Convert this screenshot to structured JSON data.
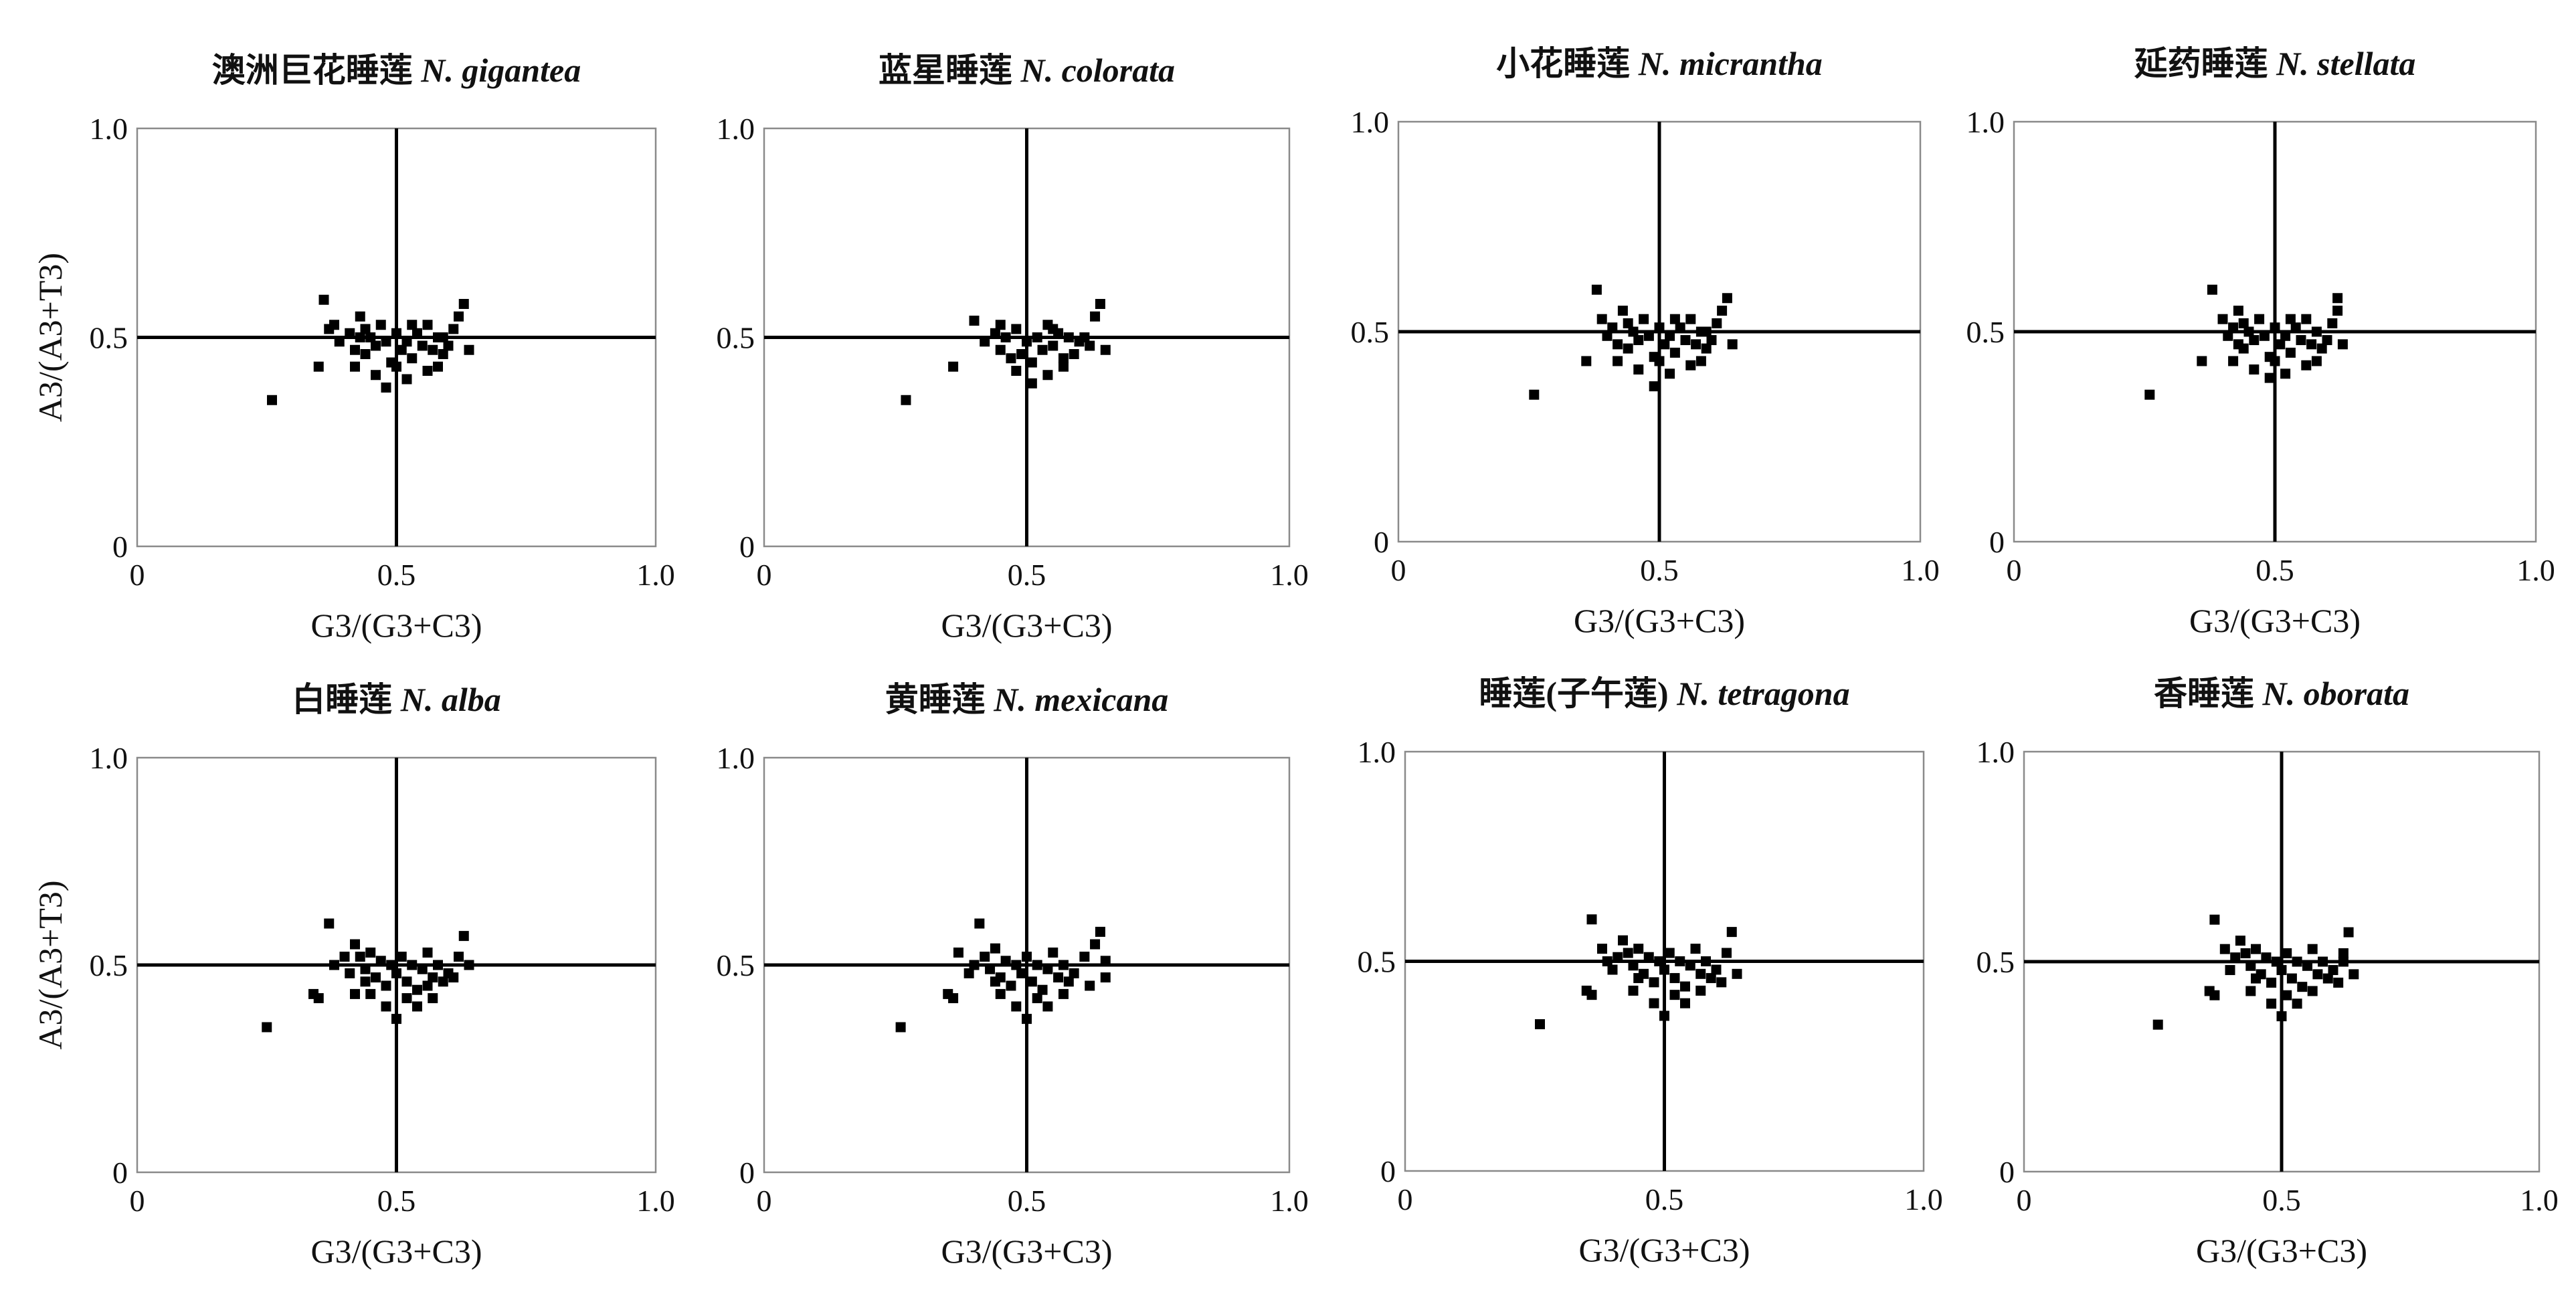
{
  "colors": {
    "background": "#ffffff",
    "frame": "#8a8a8a",
    "points": "#000000",
    "reference_lines": "#000000"
  },
  "chart_data": [
    {
      "type": "scatter",
      "title_cn": "澳洲巨花睡莲",
      "title_latin": "N. gigantea",
      "xlabel": "G3/(G3+C3)",
      "ylabel": "A3/(A3+T3)",
      "xlim": [
        0,
        1.0
      ],
      "ylim": [
        0,
        1.0
      ],
      "x_ticks": [
        "0",
        "0.5",
        "1.0"
      ],
      "y_ticks": [
        "0",
        "0.5",
        "1.0"
      ],
      "reference_lines": {
        "x": 0.5,
        "y": 0.5
      },
      "grid": false,
      "points": [
        [
          0.26,
          0.35
        ],
        [
          0.36,
          0.59
        ],
        [
          0.35,
          0.43
        ],
        [
          0.38,
          0.53
        ],
        [
          0.39,
          0.49
        ],
        [
          0.41,
          0.51
        ],
        [
          0.42,
          0.47
        ],
        [
          0.43,
          0.55
        ],
        [
          0.44,
          0.52
        ],
        [
          0.45,
          0.5
        ],
        [
          0.46,
          0.48
        ],
        [
          0.47,
          0.53
        ],
        [
          0.48,
          0.49
        ],
        [
          0.49,
          0.44
        ],
        [
          0.5,
          0.51
        ],
        [
          0.51,
          0.47
        ],
        [
          0.52,
          0.49
        ],
        [
          0.53,
          0.45
        ],
        [
          0.54,
          0.51
        ],
        [
          0.55,
          0.48
        ],
        [
          0.56,
          0.53
        ],
        [
          0.57,
          0.47
        ],
        [
          0.58,
          0.5
        ],
        [
          0.59,
          0.46
        ],
        [
          0.6,
          0.48
        ],
        [
          0.61,
          0.52
        ],
        [
          0.62,
          0.55
        ],
        [
          0.63,
          0.58
        ],
        [
          0.64,
          0.47
        ],
        [
          0.42,
          0.43
        ],
        [
          0.46,
          0.41
        ],
        [
          0.48,
          0.38
        ],
        [
          0.5,
          0.43
        ],
        [
          0.52,
          0.4
        ],
        [
          0.56,
          0.42
        ],
        [
          0.58,
          0.43
        ],
        [
          0.44,
          0.46
        ],
        [
          0.53,
          0.53
        ],
        [
          0.59,
          0.5
        ],
        [
          0.37,
          0.52
        ],
        [
          0.43,
          0.5
        ]
      ]
    },
    {
      "type": "scatter",
      "title_cn": "蓝星睡莲",
      "title_latin": "N. colorata",
      "xlabel": "G3/(G3+C3)",
      "ylabel": "",
      "xlim": [
        0,
        1.0
      ],
      "ylim": [
        0,
        1.0
      ],
      "x_ticks": [
        "0",
        "0.5",
        "1.0"
      ],
      "y_ticks": [
        "0",
        "0.5",
        "1.0"
      ],
      "reference_lines": {
        "x": 0.5,
        "y": 0.5
      },
      "grid": false,
      "points": [
        [
          0.27,
          0.35
        ],
        [
          0.36,
          0.43
        ],
        [
          0.4,
          0.54
        ],
        [
          0.42,
          0.49
        ],
        [
          0.44,
          0.51
        ],
        [
          0.45,
          0.47
        ],
        [
          0.46,
          0.5
        ],
        [
          0.48,
          0.52
        ],
        [
          0.49,
          0.46
        ],
        [
          0.5,
          0.49
        ],
        [
          0.51,
          0.44
        ],
        [
          0.52,
          0.5
        ],
        [
          0.53,
          0.47
        ],
        [
          0.54,
          0.53
        ],
        [
          0.55,
          0.48
        ],
        [
          0.56,
          0.51
        ],
        [
          0.57,
          0.45
        ],
        [
          0.58,
          0.5
        ],
        [
          0.59,
          0.46
        ],
        [
          0.6,
          0.49
        ],
        [
          0.62,
          0.48
        ],
        [
          0.63,
          0.55
        ],
        [
          0.64,
          0.58
        ],
        [
          0.65,
          0.47
        ],
        [
          0.48,
          0.42
        ],
        [
          0.51,
          0.39
        ],
        [
          0.54,
          0.41
        ],
        [
          0.57,
          0.43
        ],
        [
          0.47,
          0.45
        ],
        [
          0.55,
          0.52
        ],
        [
          0.61,
          0.5
        ],
        [
          0.45,
          0.53
        ]
      ]
    },
    {
      "type": "scatter",
      "title_cn": "小花睡莲",
      "title_latin": "N. micrantha",
      "xlabel": "G3/(G3+C3)",
      "ylabel": "",
      "xlim": [
        0,
        1.0
      ],
      "ylim": [
        0,
        1.0
      ],
      "x_ticks": [
        "0",
        "0.5",
        "1.0"
      ],
      "y_ticks": [
        "0",
        "0.5",
        "1.0"
      ],
      "reference_lines": {
        "x": 0.5,
        "y": 0.5
      },
      "grid": false,
      "points": [
        [
          0.26,
          0.35
        ],
        [
          0.38,
          0.6
        ],
        [
          0.36,
          0.43
        ],
        [
          0.39,
          0.53
        ],
        [
          0.4,
          0.49
        ],
        [
          0.41,
          0.51
        ],
        [
          0.42,
          0.47
        ],
        [
          0.43,
          0.55
        ],
        [
          0.44,
          0.52
        ],
        [
          0.45,
          0.5
        ],
        [
          0.46,
          0.48
        ],
        [
          0.47,
          0.53
        ],
        [
          0.48,
          0.49
        ],
        [
          0.49,
          0.44
        ],
        [
          0.5,
          0.51
        ],
        [
          0.51,
          0.47
        ],
        [
          0.52,
          0.49
        ],
        [
          0.53,
          0.45
        ],
        [
          0.54,
          0.51
        ],
        [
          0.55,
          0.48
        ],
        [
          0.56,
          0.53
        ],
        [
          0.57,
          0.47
        ],
        [
          0.58,
          0.5
        ],
        [
          0.59,
          0.46
        ],
        [
          0.6,
          0.48
        ],
        [
          0.61,
          0.52
        ],
        [
          0.62,
          0.55
        ],
        [
          0.63,
          0.58
        ],
        [
          0.64,
          0.47
        ],
        [
          0.42,
          0.43
        ],
        [
          0.46,
          0.41
        ],
        [
          0.49,
          0.37
        ],
        [
          0.5,
          0.43
        ],
        [
          0.52,
          0.4
        ],
        [
          0.56,
          0.42
        ],
        [
          0.58,
          0.43
        ],
        [
          0.44,
          0.46
        ],
        [
          0.53,
          0.53
        ],
        [
          0.59,
          0.5
        ]
      ]
    },
    {
      "type": "scatter",
      "title_cn": "延药睡莲",
      "title_latin": "N. stellata",
      "xlabel": "G3/(G3+C3)",
      "ylabel": "",
      "xlim": [
        0,
        1.0
      ],
      "ylim": [
        0,
        1.0
      ],
      "x_ticks": [
        "0",
        "0.5",
        "1.0"
      ],
      "y_ticks": [
        "0",
        "0.5",
        "1.0"
      ],
      "reference_lines": {
        "x": 0.5,
        "y": 0.5
      },
      "grid": false,
      "points": [
        [
          0.26,
          0.35
        ],
        [
          0.38,
          0.6
        ],
        [
          0.36,
          0.43
        ],
        [
          0.4,
          0.53
        ],
        [
          0.41,
          0.49
        ],
        [
          0.42,
          0.51
        ],
        [
          0.43,
          0.47
        ],
        [
          0.43,
          0.55
        ],
        [
          0.44,
          0.52
        ],
        [
          0.45,
          0.5
        ],
        [
          0.46,
          0.48
        ],
        [
          0.47,
          0.53
        ],
        [
          0.48,
          0.49
        ],
        [
          0.49,
          0.44
        ],
        [
          0.5,
          0.51
        ],
        [
          0.51,
          0.47
        ],
        [
          0.52,
          0.49
        ],
        [
          0.53,
          0.45
        ],
        [
          0.54,
          0.51
        ],
        [
          0.55,
          0.48
        ],
        [
          0.56,
          0.53
        ],
        [
          0.57,
          0.47
        ],
        [
          0.58,
          0.5
        ],
        [
          0.59,
          0.46
        ],
        [
          0.6,
          0.48
        ],
        [
          0.61,
          0.52
        ],
        [
          0.62,
          0.55
        ],
        [
          0.62,
          0.58
        ],
        [
          0.63,
          0.47
        ],
        [
          0.42,
          0.43
        ],
        [
          0.46,
          0.41
        ],
        [
          0.49,
          0.39
        ],
        [
          0.5,
          0.43
        ],
        [
          0.52,
          0.4
        ],
        [
          0.56,
          0.42
        ],
        [
          0.58,
          0.43
        ],
        [
          0.44,
          0.46
        ],
        [
          0.53,
          0.53
        ]
      ]
    },
    {
      "type": "scatter",
      "title_cn": "白睡莲",
      "title_latin": "N. alba",
      "xlabel": "G3/(G3+C3)",
      "ylabel": "A3/(A3+T3)",
      "xlim": [
        0,
        1.0
      ],
      "ylim": [
        0,
        1.0
      ],
      "x_ticks": [
        "0",
        "0.5",
        "1.0"
      ],
      "y_ticks": [
        "0",
        "0.5",
        "1.0"
      ],
      "reference_lines": {
        "x": 0.5,
        "y": 0.5
      },
      "grid": false,
      "points": [
        [
          0.25,
          0.35
        ],
        [
          0.34,
          0.43
        ],
        [
          0.35,
          0.42
        ],
        [
          0.37,
          0.6
        ],
        [
          0.38,
          0.5
        ],
        [
          0.4,
          0.52
        ],
        [
          0.41,
          0.48
        ],
        [
          0.42,
          0.55
        ],
        [
          0.43,
          0.52
        ],
        [
          0.44,
          0.49
        ],
        [
          0.45,
          0.53
        ],
        [
          0.46,
          0.47
        ],
        [
          0.47,
          0.51
        ],
        [
          0.48,
          0.45
        ],
        [
          0.49,
          0.5
        ],
        [
          0.5,
          0.48
        ],
        [
          0.51,
          0.52
        ],
        [
          0.52,
          0.46
        ],
        [
          0.53,
          0.5
        ],
        [
          0.54,
          0.44
        ],
        [
          0.55,
          0.49
        ],
        [
          0.56,
          0.53
        ],
        [
          0.57,
          0.47
        ],
        [
          0.58,
          0.5
        ],
        [
          0.59,
          0.46
        ],
        [
          0.6,
          0.48
        ],
        [
          0.62,
          0.52
        ],
        [
          0.63,
          0.57
        ],
        [
          0.64,
          0.5
        ],
        [
          0.42,
          0.43
        ],
        [
          0.45,
          0.43
        ],
        [
          0.48,
          0.4
        ],
        [
          0.5,
          0.37
        ],
        [
          0.52,
          0.42
        ],
        [
          0.54,
          0.4
        ],
        [
          0.57,
          0.42
        ],
        [
          0.61,
          0.47
        ],
        [
          0.44,
          0.46
        ],
        [
          0.56,
          0.45
        ]
      ]
    },
    {
      "type": "scatter",
      "title_cn": "黄睡莲",
      "title_latin": "N. mexicana",
      "xlabel": "G3/(G3+C3)",
      "ylabel": "",
      "xlim": [
        0,
        1.0
      ],
      "ylim": [
        0,
        1.0
      ],
      "x_ticks": [
        "0",
        "0.5",
        "1.0"
      ],
      "y_ticks": [
        "0",
        "0.5",
        "1.0"
      ],
      "reference_lines": {
        "x": 0.5,
        "y": 0.5
      },
      "grid": false,
      "points": [
        [
          0.26,
          0.35
        ],
        [
          0.35,
          0.43
        ],
        [
          0.36,
          0.42
        ],
        [
          0.37,
          0.53
        ],
        [
          0.39,
          0.48
        ],
        [
          0.4,
          0.5
        ],
        [
          0.41,
          0.6
        ],
        [
          0.42,
          0.52
        ],
        [
          0.43,
          0.49
        ],
        [
          0.44,
          0.54
        ],
        [
          0.45,
          0.47
        ],
        [
          0.46,
          0.51
        ],
        [
          0.47,
          0.45
        ],
        [
          0.48,
          0.5
        ],
        [
          0.49,
          0.48
        ],
        [
          0.5,
          0.52
        ],
        [
          0.51,
          0.46
        ],
        [
          0.52,
          0.5
        ],
        [
          0.53,
          0.44
        ],
        [
          0.54,
          0.49
        ],
        [
          0.55,
          0.53
        ],
        [
          0.56,
          0.47
        ],
        [
          0.57,
          0.5
        ],
        [
          0.58,
          0.46
        ],
        [
          0.59,
          0.48
        ],
        [
          0.61,
          0.52
        ],
        [
          0.63,
          0.55
        ],
        [
          0.64,
          0.58
        ],
        [
          0.65,
          0.47
        ],
        [
          0.45,
          0.43
        ],
        [
          0.48,
          0.4
        ],
        [
          0.5,
          0.37
        ],
        [
          0.52,
          0.42
        ],
        [
          0.54,
          0.4
        ],
        [
          0.57,
          0.43
        ],
        [
          0.62,
          0.45
        ],
        [
          0.44,
          0.46
        ],
        [
          0.65,
          0.51
        ]
      ]
    },
    {
      "type": "scatter",
      "title_cn": "睡莲(子午莲)",
      "title_latin": "N. tetragona",
      "xlabel": "G3/(G3+C3)",
      "ylabel": "",
      "xlim": [
        0,
        1.0
      ],
      "ylim": [
        0,
        1.0
      ],
      "x_ticks": [
        "0",
        "0.5",
        "1.0"
      ],
      "y_ticks": [
        "0",
        "0.5",
        "1.0"
      ],
      "reference_lines": {
        "x": 0.5,
        "y": 0.5
      },
      "grid": false,
      "points": [
        [
          0.26,
          0.35
        ],
        [
          0.35,
          0.43
        ],
        [
          0.36,
          0.42
        ],
        [
          0.36,
          0.6
        ],
        [
          0.38,
          0.53
        ],
        [
          0.4,
          0.48
        ],
        [
          0.41,
          0.51
        ],
        [
          0.42,
          0.55
        ],
        [
          0.43,
          0.52
        ],
        [
          0.44,
          0.49
        ],
        [
          0.45,
          0.53
        ],
        [
          0.46,
          0.47
        ],
        [
          0.47,
          0.51
        ],
        [
          0.48,
          0.45
        ],
        [
          0.49,
          0.5
        ],
        [
          0.5,
          0.48
        ],
        [
          0.51,
          0.52
        ],
        [
          0.52,
          0.46
        ],
        [
          0.53,
          0.5
        ],
        [
          0.54,
          0.44
        ],
        [
          0.55,
          0.49
        ],
        [
          0.56,
          0.53
        ],
        [
          0.57,
          0.47
        ],
        [
          0.58,
          0.5
        ],
        [
          0.59,
          0.46
        ],
        [
          0.6,
          0.48
        ],
        [
          0.62,
          0.52
        ],
        [
          0.63,
          0.57
        ],
        [
          0.64,
          0.47
        ],
        [
          0.44,
          0.43
        ],
        [
          0.48,
          0.4
        ],
        [
          0.5,
          0.37
        ],
        [
          0.52,
          0.42
        ],
        [
          0.54,
          0.4
        ],
        [
          0.57,
          0.43
        ],
        [
          0.61,
          0.45
        ],
        [
          0.45,
          0.46
        ],
        [
          0.39,
          0.5
        ]
      ]
    },
    {
      "type": "scatter",
      "title_cn": "香睡莲",
      "title_latin": "N. oborata",
      "xlabel": "G3/(G3+C3)",
      "ylabel": "",
      "xlim": [
        0,
        1.0
      ],
      "ylim": [
        0,
        1.0
      ],
      "x_ticks": [
        "0",
        "0.5",
        "1.0"
      ],
      "y_ticks": [
        "0",
        "0.5",
        "1.0"
      ],
      "reference_lines": {
        "x": 0.5,
        "y": 0.5
      },
      "grid": false,
      "points": [
        [
          0.26,
          0.35
        ],
        [
          0.36,
          0.43
        ],
        [
          0.37,
          0.42
        ],
        [
          0.37,
          0.6
        ],
        [
          0.39,
          0.53
        ],
        [
          0.4,
          0.48
        ],
        [
          0.41,
          0.51
        ],
        [
          0.42,
          0.55
        ],
        [
          0.43,
          0.52
        ],
        [
          0.44,
          0.49
        ],
        [
          0.45,
          0.53
        ],
        [
          0.46,
          0.47
        ],
        [
          0.47,
          0.51
        ],
        [
          0.48,
          0.45
        ],
        [
          0.49,
          0.5
        ],
        [
          0.5,
          0.48
        ],
        [
          0.51,
          0.52
        ],
        [
          0.52,
          0.46
        ],
        [
          0.53,
          0.5
        ],
        [
          0.54,
          0.44
        ],
        [
          0.55,
          0.49
        ],
        [
          0.56,
          0.53
        ],
        [
          0.57,
          0.47
        ],
        [
          0.58,
          0.5
        ],
        [
          0.59,
          0.46
        ],
        [
          0.6,
          0.48
        ],
        [
          0.62,
          0.52
        ],
        [
          0.63,
          0.57
        ],
        [
          0.64,
          0.47
        ],
        [
          0.44,
          0.43
        ],
        [
          0.48,
          0.4
        ],
        [
          0.5,
          0.37
        ],
        [
          0.51,
          0.42
        ],
        [
          0.53,
          0.4
        ],
        [
          0.56,
          0.43
        ],
        [
          0.61,
          0.45
        ],
        [
          0.45,
          0.46
        ],
        [
          0.62,
          0.5
        ]
      ]
    }
  ]
}
